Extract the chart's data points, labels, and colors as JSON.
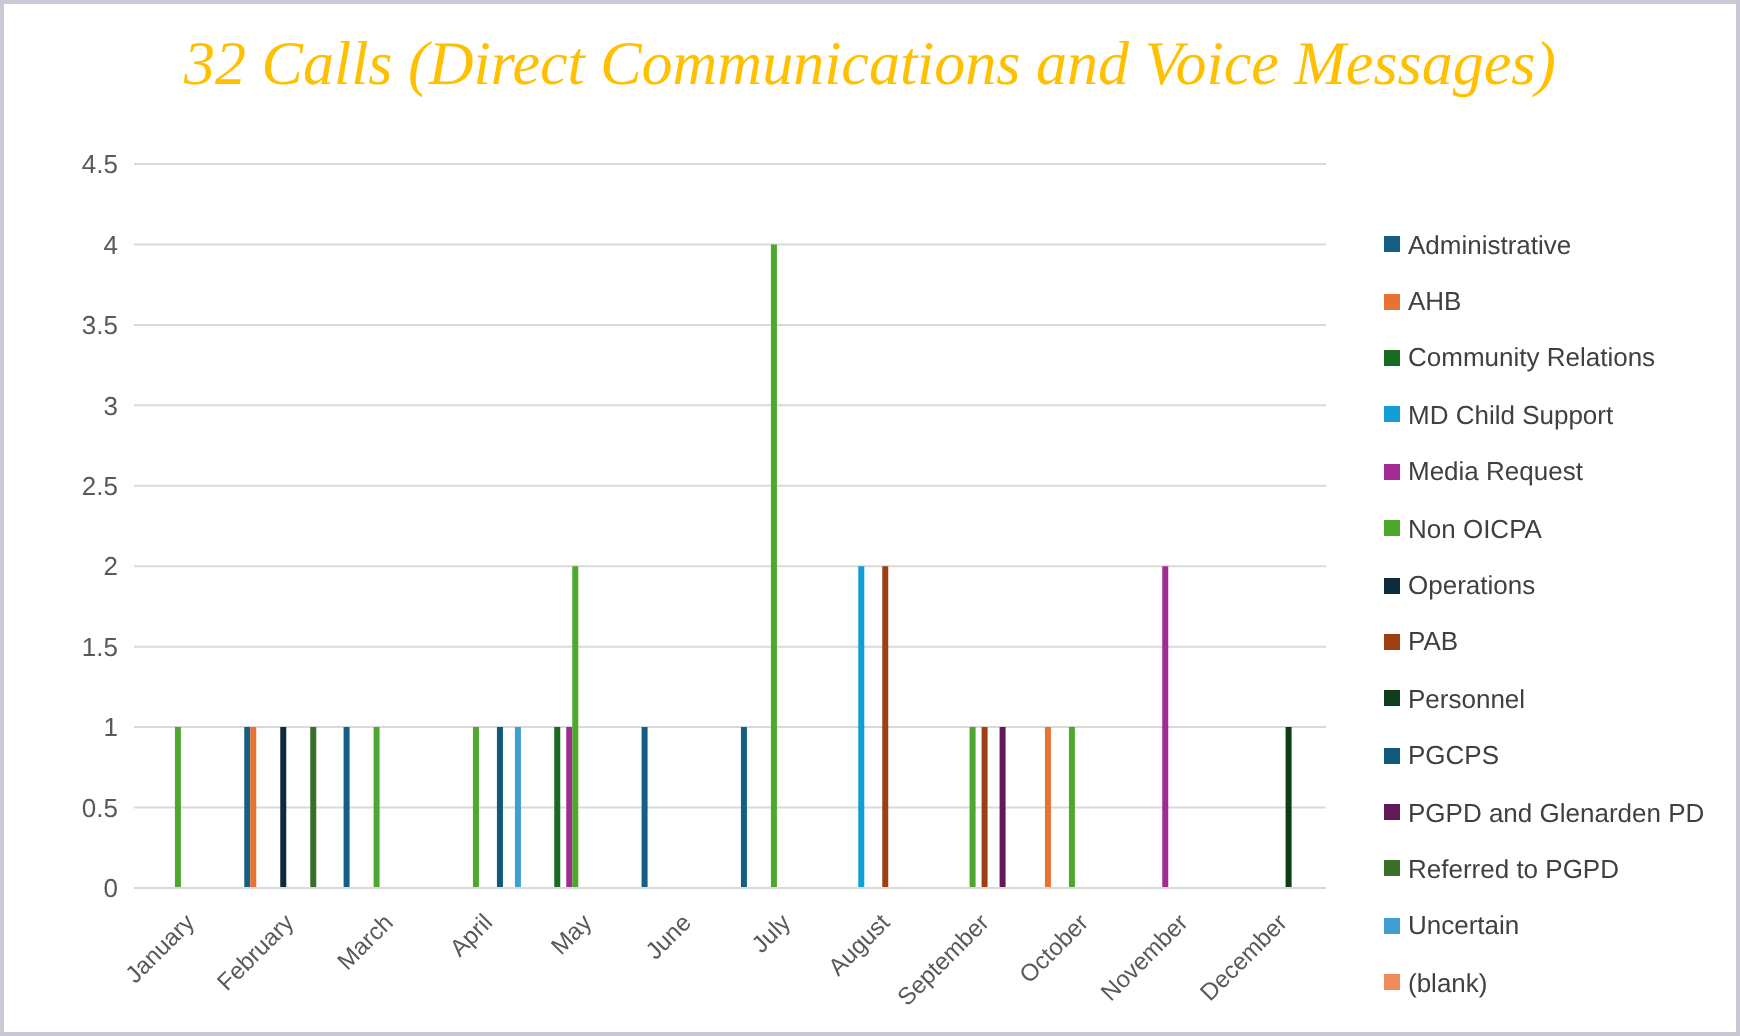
{
  "chart_data": {
    "type": "bar",
    "title": "32 Calls (Direct Communications and Voice Messages)",
    "categories": [
      "January",
      "February",
      "March",
      "April",
      "May",
      "June",
      "July",
      "August",
      "September",
      "October",
      "November",
      "December"
    ],
    "series": [
      {
        "name": "Administrative",
        "color": "#156082",
        "values": [
          null,
          1,
          1,
          null,
          null,
          1,
          1,
          null,
          null,
          null,
          null,
          null
        ]
      },
      {
        "name": "AHB",
        "color": "#e97132",
        "values": [
          null,
          1,
          null,
          null,
          null,
          null,
          null,
          null,
          null,
          1,
          null,
          null
        ]
      },
      {
        "name": "Community Relations",
        "color": "#196b24",
        "values": [
          null,
          null,
          null,
          null,
          1,
          null,
          null,
          null,
          null,
          null,
          null,
          null
        ]
      },
      {
        "name": "MD Child Support",
        "color": "#0f9ed5",
        "values": [
          null,
          null,
          null,
          null,
          null,
          null,
          null,
          2,
          null,
          null,
          null,
          null
        ]
      },
      {
        "name": "Media Request",
        "color": "#a02b93",
        "values": [
          null,
          null,
          null,
          null,
          1,
          null,
          null,
          null,
          null,
          null,
          2,
          null
        ]
      },
      {
        "name": "Non OICPA",
        "color": "#4ea72e",
        "values": [
          1,
          null,
          1,
          1,
          2,
          null,
          4,
          null,
          1,
          1,
          null,
          null
        ]
      },
      {
        "name": "Operations",
        "color": "#0e2a3f",
        "values": [
          null,
          1,
          null,
          null,
          null,
          null,
          null,
          null,
          null,
          null,
          null,
          null
        ]
      },
      {
        "name": "PAB",
        "color": "#9c3f12",
        "values": [
          null,
          null,
          null,
          null,
          null,
          null,
          null,
          2,
          1,
          null,
          null,
          null
        ]
      },
      {
        "name": "Personnel",
        "color": "#0f3d17",
        "values": [
          null,
          null,
          null,
          null,
          null,
          null,
          null,
          null,
          null,
          null,
          null,
          1
        ]
      },
      {
        "name": "PGCPS",
        "color": "#0f5a7a",
        "values": [
          null,
          null,
          null,
          1,
          null,
          null,
          null,
          null,
          null,
          null,
          null,
          null
        ]
      },
      {
        "name": "PGPD and Glenarden PD",
        "color": "#5f1a57",
        "values": [
          null,
          null,
          null,
          null,
          null,
          null,
          null,
          null,
          1,
          null,
          null,
          null
        ]
      },
      {
        "name": "Referred to PGPD",
        "color": "#3a6e2b",
        "values": [
          null,
          1,
          null,
          null,
          null,
          null,
          null,
          null,
          null,
          null,
          null,
          null
        ]
      },
      {
        "name": "Uncertain",
        "color": "#3d9fd4",
        "values": [
          null,
          null,
          null,
          1,
          null,
          null,
          null,
          null,
          null,
          null,
          null,
          null
        ]
      },
      {
        "name": "(blank)",
        "color": "#ee8c58",
        "values": [
          null,
          null,
          null,
          null,
          null,
          null,
          null,
          null,
          null,
          null,
          null,
          null
        ]
      }
    ],
    "ylim": [
      0,
      4.5
    ],
    "yticks": [
      0,
      0.5,
      1,
      1.5,
      2,
      2.5,
      3,
      3.5,
      4,
      4.5
    ],
    "grid": "y",
    "legend": "right"
  }
}
